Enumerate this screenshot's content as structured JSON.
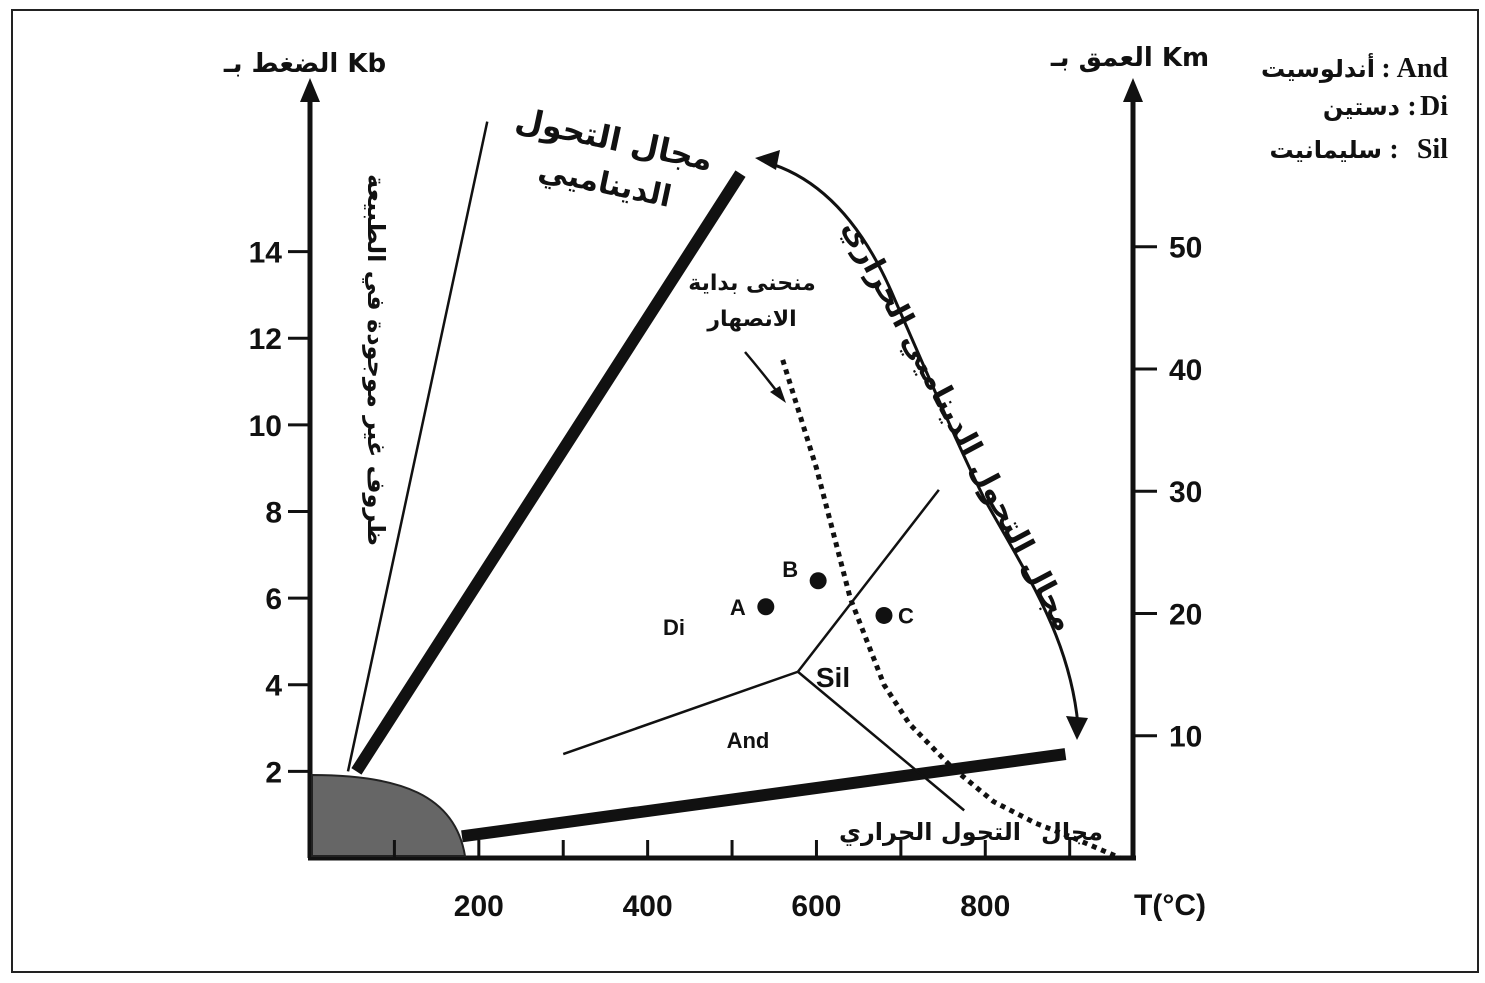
{
  "chart_data": {
    "type": "line",
    "title": "",
    "xlabel": "T(°C)",
    "ylabel_left": "الضغط بـ Kb",
    "ylabel_right": "العمق بـ Km",
    "xlim": [
      0,
      975
    ],
    "ylim_pressure": [
      0,
      17.5
    ],
    "ylim_depth_km": [
      0,
      62
    ],
    "x_ticks": [
      100,
      200,
      300,
      400,
      500,
      600,
      700,
      800,
      900
    ],
    "x_tick_labels": [
      "200",
      "400",
      "600",
      "800"
    ],
    "x_tick_label_values": [
      200,
      400,
      600,
      800
    ],
    "y_left_ticks": [
      2,
      4,
      6,
      8,
      10,
      12,
      14
    ],
    "y_left_tick_labels": [
      "2",
      "4",
      "6",
      "8",
      "10",
      "12",
      "14"
    ],
    "y_right_ticks": [
      10,
      20,
      30,
      40,
      50
    ],
    "y_right_tick_labels": [
      "10",
      "20",
      "30",
      "40",
      "50"
    ],
    "grid": false,
    "series": [
      {
        "name": "",
        "style": "thin",
        "x": [
          45,
          210
        ],
        "y": [
          2,
          17
        ]
      },
      {
        "name": "",
        "style": "thick",
        "x": [
          55,
          510
        ],
        "y": [
          2,
          15.8
        ]
      },
      {
        "name": "",
        "style": "thick",
        "x": [
          180,
          895
        ],
        "y": [
          0.5,
          2.4
        ]
      },
      {
        "name": "",
        "style": "dotted",
        "x": [
          560,
          600,
          640,
          660,
          680,
          710,
          760,
          810,
          860,
          900,
          960
        ],
        "y": [
          11.5,
          9,
          6,
          5,
          4,
          3.1,
          2.1,
          1.3,
          0.8,
          0.5,
          0
        ]
      },
      {
        "name": "",
        "style": "thin",
        "x": [
          300,
          578
        ],
        "y": [
          2.4,
          4.3
        ]
      },
      {
        "name": "",
        "style": "thin",
        "x": [
          578,
          745
        ],
        "y": [
          4.3,
          8.5
        ]
      },
      {
        "name": "",
        "style": "thin",
        "x": [
          578,
          775
        ],
        "y": [
          4.3,
          1.1
        ]
      }
    ],
    "points": [
      {
        "label": "A",
        "x": 540,
        "y": 5.8
      },
      {
        "label": "B",
        "x": 602,
        "y": 6.4
      },
      {
        "label": "C",
        "x": 680,
        "y": 5.6
      }
    ],
    "region_labels": {
      "di": "Di",
      "and": "And",
      "sil": "Sil",
      "dynamic": [
        "مجال التحول",
        "الديناميي"
      ],
      "melting": [
        "منحنى بداية",
        "الانصهار"
      ],
      "thermal_dynamic": "مجال التحول الديناميي الحراري",
      "thermal": [
        "مجال",
        "التحول الحراري"
      ],
      "nonexistent": "ظروف غير موجودة في الطبيعة"
    },
    "legend": [
      {
        "abbr": "And",
        "name": "أندلوسيت"
      },
      {
        "abbr": "Di",
        "name": "دستين"
      },
      {
        "abbr": "Sil",
        "name": "سليمانيت"
      }
    ],
    "colors": {
      "ink": "#111111",
      "shaded_region": "#666666"
    }
  }
}
